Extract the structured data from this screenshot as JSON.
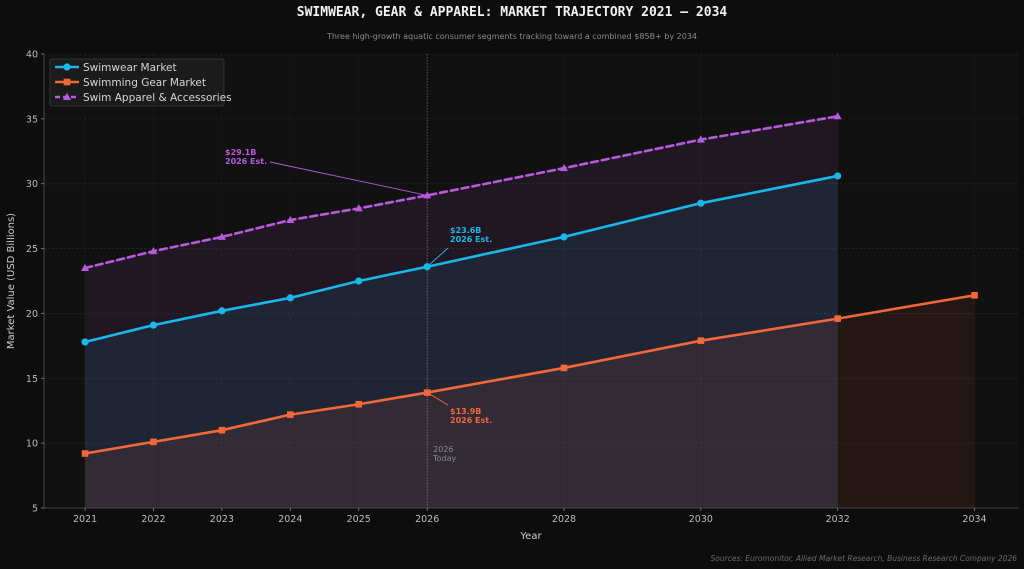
{
  "chart_data": {
    "type": "line",
    "title": "SWIMWEAR, GEAR & APPAREL: MARKET TRAJECTORY 2021 — 2034",
    "subtitle": "Three high-growth aquatic consumer segments tracking toward a combined $85B+ by 2034",
    "xlabel": "Year",
    "ylabel": "Market Value (USD Billions)",
    "xlim": [
      2020.4,
      2034.65
    ],
    "ylim": [
      5,
      40
    ],
    "x_ticks": [
      2021,
      2022,
      2023,
      2024,
      2025,
      2026,
      2028,
      2030,
      2032,
      2034
    ],
    "y_ticks": [
      5,
      10,
      15,
      20,
      25,
      30,
      35,
      40
    ],
    "grid": true,
    "legend_position": "top-left",
    "series": [
      {
        "name": "Swimwear Market",
        "color": "#1ab8ea",
        "marker": "circle",
        "line_style": "solid",
        "x": [
          2021,
          2022,
          2023,
          2024,
          2025,
          2026,
          2028,
          2030,
          2032
        ],
        "values": [
          17.8,
          19.1,
          20.2,
          21.2,
          22.5,
          23.6,
          25.9,
          28.5,
          30.6
        ]
      },
      {
        "name": "Swimming Gear Market",
        "color": "#f2683a",
        "marker": "square",
        "line_style": "solid",
        "x": [
          2021,
          2022,
          2023,
          2024,
          2025,
          2026,
          2028,
          2030,
          2032,
          2034
        ],
        "values": [
          9.2,
          10.1,
          11.0,
          12.2,
          13.0,
          13.9,
          15.8,
          17.9,
          19.6,
          21.4
        ]
      },
      {
        "name": "Swim Apparel & Accessories",
        "color": "#b85ae0",
        "marker": "triangle",
        "line_style": "dashed",
        "x": [
          2021,
          2022,
          2023,
          2024,
          2025,
          2026,
          2028,
          2030,
          2032
        ],
        "values": [
          23.5,
          24.8,
          25.9,
          27.2,
          28.1,
          29.1,
          31.2,
          33.4,
          35.2
        ]
      }
    ],
    "today_marker": {
      "x": 2026,
      "label_line1": "2026",
      "label_line2": "Today"
    },
    "annotations": [
      {
        "series": 2,
        "x": 2026,
        "y": 29.1,
        "line1": "$29.1B",
        "line2": "2026 Est.",
        "color": "#b85ae0"
      },
      {
        "series": 0,
        "x": 2026,
        "y": 23.6,
        "line1": "$23.6B",
        "line2": "2026 Est.",
        "color": "#1ab8ea"
      },
      {
        "series": 1,
        "x": 2026,
        "y": 13.9,
        "line1": "$13.9B",
        "line2": "2026 Est.",
        "color": "#f2683a"
      }
    ],
    "source": "Sources: Euromonitor, Allied Market Research, Business Research Company 2026"
  }
}
